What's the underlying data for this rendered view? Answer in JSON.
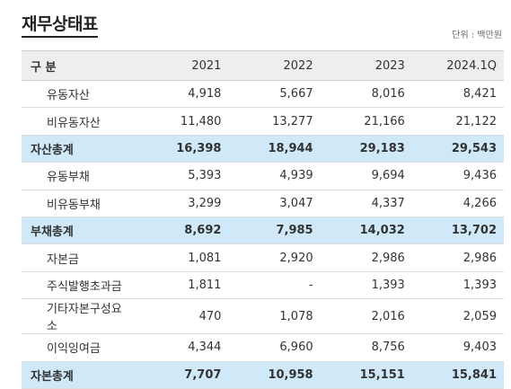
{
  "title": "재무상태표",
  "unit": "단위 : 백만원",
  "table": {
    "headers": [
      "구 분",
      "2021",
      "2022",
      "2023",
      "2024.1Q"
    ],
    "rows": [
      {
        "label": "유동자산",
        "values": [
          "4,918",
          "5,667",
          "8,016",
          "8,421"
        ],
        "total": false
      },
      {
        "label": "비유동자산",
        "values": [
          "11,480",
          "13,277",
          "21,166",
          "21,122"
        ],
        "total": false
      },
      {
        "label": "자산총계",
        "values": [
          "16,398",
          "18,944",
          "29,183",
          "29,543"
        ],
        "total": true
      },
      {
        "label": "유동부채",
        "values": [
          "5,393",
          "4,939",
          "9,694",
          "9,436"
        ],
        "total": false
      },
      {
        "label": "비유동부채",
        "values": [
          "3,299",
          "3,047",
          "4,337",
          "4,266"
        ],
        "total": false
      },
      {
        "label": "부채총계",
        "values": [
          "8,692",
          "7,985",
          "14,032",
          "13,702"
        ],
        "total": true
      },
      {
        "label": "자본금",
        "values": [
          "1,081",
          "2,920",
          "2,986",
          "2,986"
        ],
        "total": false
      },
      {
        "label": "주식발행초과금",
        "values": [
          "1,811",
          "-",
          "1,393",
          "1,393"
        ],
        "total": false
      },
      {
        "label": "기타자본구성요소",
        "values": [
          "470",
          "1,078",
          "2,016",
          "2,059"
        ],
        "total": false
      },
      {
        "label": "이익잉여금",
        "values": [
          "4,344",
          "6,960",
          "8,756",
          "9,403"
        ],
        "total": false
      },
      {
        "label": "자본총계",
        "values": [
          "7,707",
          "10,958",
          "15,151",
          "15,841"
        ],
        "total": true
      }
    ]
  }
}
